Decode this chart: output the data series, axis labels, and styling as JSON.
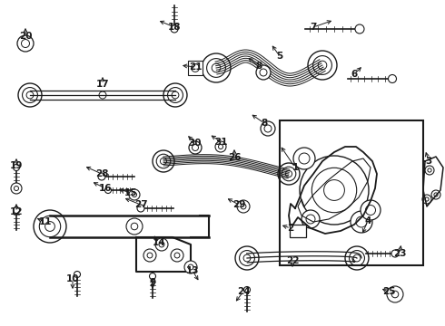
{
  "bg_color": "#ffffff",
  "line_color": "#1a1a1a",
  "label_color": "#1a1a1a",
  "figw": 4.9,
  "figh": 3.6,
  "dpi": 100,
  "xlim": [
    0,
    490
  ],
  "ylim": [
    0,
    360
  ]
}
